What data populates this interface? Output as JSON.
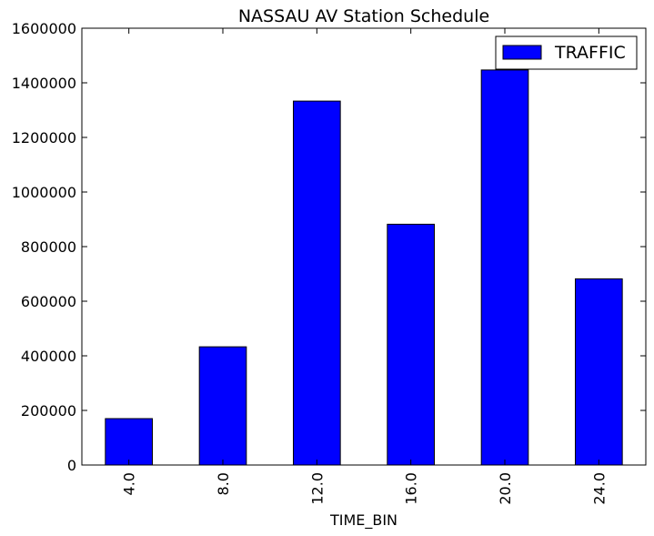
{
  "chart_data": {
    "type": "bar",
    "title": "NASSAU AV Station Schedule",
    "xlabel": "TIME_BIN",
    "ylabel": "",
    "categories": [
      "4.0",
      "8.0",
      "12.0",
      "16.0",
      "20.0",
      "24.0"
    ],
    "series": [
      {
        "name": "TRAFFIC",
        "values": [
          170000,
          433000,
          1333000,
          882000,
          1447000,
          682000
        ],
        "color": "#0000ff"
      }
    ],
    "ylim": [
      0,
      1600000
    ],
    "yticks": [
      0,
      200000,
      400000,
      600000,
      800000,
      1000000,
      1200000,
      1400000,
      1600000
    ],
    "ytick_labels": [
      "0",
      "200000",
      "400000",
      "600000",
      "800000",
      "1000000",
      "1200000",
      "1400000",
      "1600000"
    ],
    "grid": false,
    "legend_position": "top-right",
    "x_tick_rotation": "vertical"
  }
}
